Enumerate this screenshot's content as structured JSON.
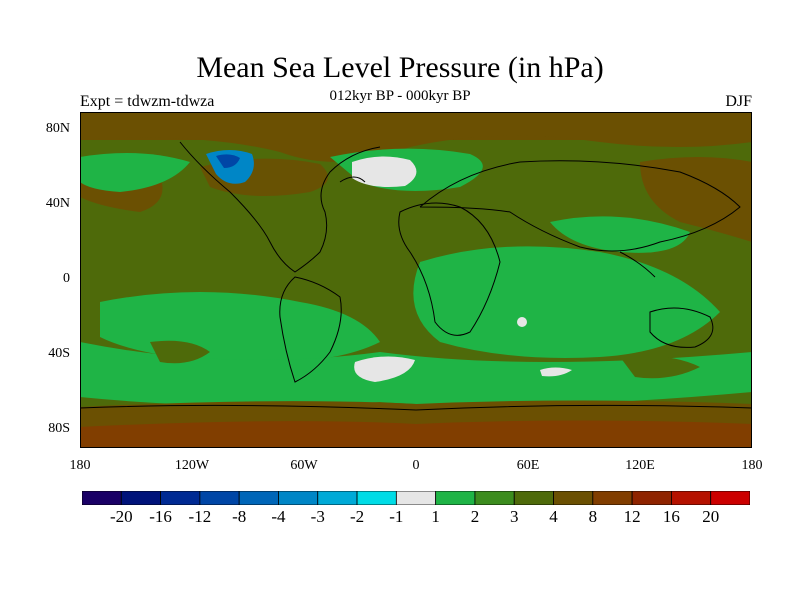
{
  "title": "Mean Sea Level Pressure (in hPa)",
  "subtitle": "012kyr BP - 000kyr BP",
  "experiment_label": "Expt = tdwzm-tdwza",
  "season_label": "DJF",
  "lat_ticks": [
    "80N",
    "40N",
    "0",
    "40S",
    "80S"
  ],
  "lon_ticks": [
    "180",
    "120W",
    "60W",
    "0",
    "60E",
    "120E",
    "180"
  ],
  "colorbar": {
    "colors": [
      "#1a0066",
      "#00137a",
      "#002a93",
      "#0046a6",
      "#0066b8",
      "#0086c6",
      "#00aad7",
      "#00dce6",
      "#e6e6e6",
      "#1fb446",
      "#3c8c1e",
      "#4e6a0a",
      "#6b5002",
      "#813e00",
      "#8f2400",
      "#b51200",
      "#cc0000"
    ],
    "labels": [
      "-20",
      "-16",
      "-12",
      "-8",
      "-4",
      "-3",
      "-2",
      "-1",
      "1",
      "2",
      "3",
      "4",
      "8",
      "12",
      "16",
      "20"
    ]
  }
}
